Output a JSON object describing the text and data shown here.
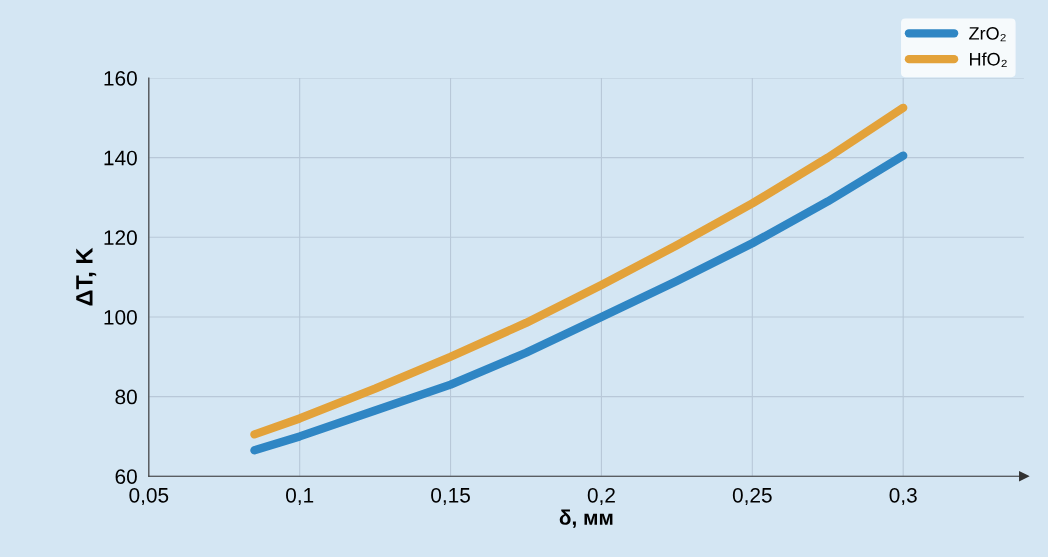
{
  "chart_data": {
    "type": "line",
    "xlabel": "δ, мм",
    "ylabel": "ΔT, K",
    "xlim": [
      0.05,
      0.34
    ],
    "ylim": [
      60,
      160
    ],
    "xticks": [
      {
        "value": 0.05,
        "label": "0,05"
      },
      {
        "value": 0.1,
        "label": "0,1"
      },
      {
        "value": 0.15,
        "label": "0,15"
      },
      {
        "value": 0.2,
        "label": "0,2"
      },
      {
        "value": 0.25,
        "label": "0,25"
      },
      {
        "value": 0.3,
        "label": "0,3"
      }
    ],
    "yticks": [
      60,
      80,
      100,
      120,
      140,
      160
    ],
    "x": [
      0.085,
      0.1,
      0.125,
      0.15,
      0.175,
      0.2,
      0.225,
      0.25,
      0.275,
      0.3
    ],
    "series": [
      {
        "name": "ZrO₂",
        "color": "#2f86c4",
        "values": [
          66.5,
          70,
          76.5,
          83,
          91,
          100,
          109,
          118.5,
          129,
          140.5
        ]
      },
      {
        "name": "HfO₂",
        "color": "#e3a23a",
        "values": [
          70.5,
          74.5,
          82,
          90,
          98.5,
          108,
          118,
          128.5,
          140,
          152.5
        ]
      }
    ],
    "grid": true,
    "legend": "top right",
    "marker": "none",
    "line_style": "solid"
  }
}
